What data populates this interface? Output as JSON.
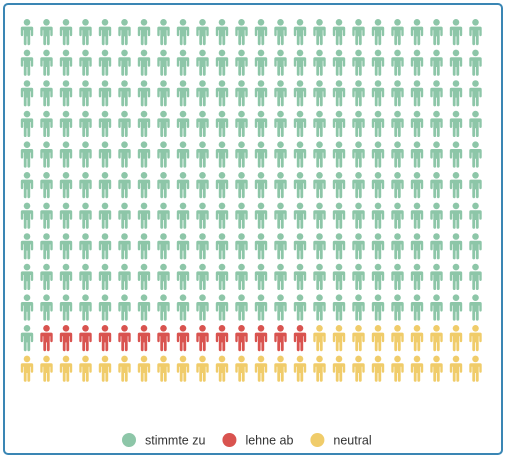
{
  "chart_data": {
    "type": "waffle",
    "title": "",
    "rows": 12,
    "columns": 24,
    "total_icons": 288,
    "icon": "person-icon",
    "fill_order": "row-major from top-left",
    "legend_position": "bottom-center",
    "series": [
      {
        "name": "stimmte zu",
        "count": 241,
        "color": "#8dc6a8"
      },
      {
        "name": "lehne ab",
        "count": 14,
        "color": "#d9534f"
      },
      {
        "name": "neutral",
        "count": 33,
        "color": "#f0cc6a"
      }
    ]
  }
}
